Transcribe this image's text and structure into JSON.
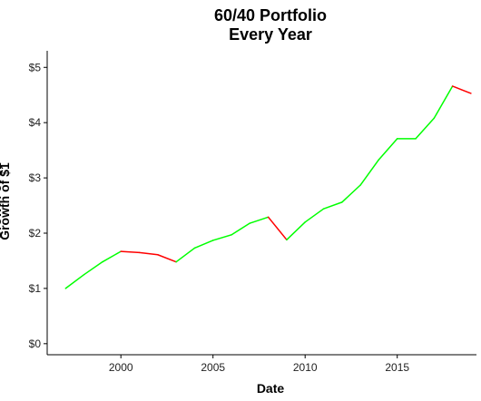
{
  "chart_data": {
    "type": "line",
    "title_lines": [
      "60/40 Portfolio",
      "Every Year"
    ],
    "xlabel": "Date",
    "ylabel": "Growth of $1",
    "xlim": [
      1996,
      2019.3
    ],
    "ylim": [
      -0.2,
      5.3
    ],
    "x_ticks": [
      2000,
      2005,
      2010,
      2015
    ],
    "x_tick_labels": [
      "2000",
      "2005",
      "2010",
      "2015"
    ],
    "y_ticks": [
      0,
      1,
      2,
      3,
      4,
      5
    ],
    "y_tick_labels": [
      "$0",
      "$1",
      "$2",
      "$3",
      "$4",
      "$5"
    ],
    "grid": false,
    "legend": "none",
    "colors": {
      "up": "#00ff00",
      "down": "#ff0000"
    },
    "series": [
      {
        "x": [
          1997,
          1998,
          1999,
          2000,
          2001,
          2002,
          2003,
          2004,
          2005,
          2006,
          2007,
          2008,
          2009,
          2010,
          2011,
          2012,
          2013,
          2014,
          2015,
          2016,
          2017,
          2018,
          2019
        ],
        "values": [
          1.0,
          1.25,
          1.48,
          1.67,
          1.65,
          1.61,
          1.48,
          1.73,
          1.87,
          1.97,
          2.18,
          2.29,
          1.88,
          2.2,
          2.44,
          2.56,
          2.87,
          3.33,
          3.71,
          3.71,
          4.08,
          4.66,
          4.53
        ]
      }
    ]
  }
}
